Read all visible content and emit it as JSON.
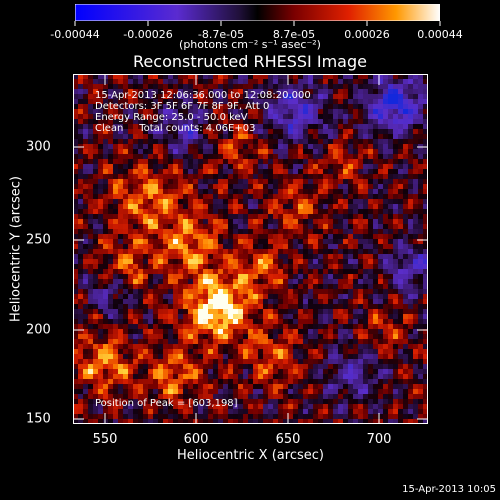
{
  "colorbar": {
    "ticks": [
      "-0.00044",
      "-0.00026",
      "-8.7e-05",
      "8.7e-05",
      "0.00026",
      "0.00044"
    ],
    "units": "(photons cm⁻² s⁻¹ asec⁻²)"
  },
  "title": "Reconstructed RHESSI Image",
  "info": {
    "time_range": "15-Apr-2013 12:06:36.000 to 12:08:20.000",
    "detectors": "Detectors: 3F 5F 6F 7F 8F 9F, Att 0",
    "energy_range": "Energy Range: 25.0 - 50.0 keV",
    "method": "Clean     Total counts: 4.06E+03"
  },
  "peak": "Position of Peak = [603,198]",
  "axes": {
    "xlabel": "Heliocentric X (arcsec)",
    "ylabel": "Heliocentric Y (arcsec)",
    "xticks": [
      "550",
      "600",
      "650",
      "700"
    ],
    "yticks": [
      "300",
      "250",
      "200",
      "150"
    ]
  },
  "footer": "15-Apr-2013 10:05",
  "colors": {
    "background": "#000000",
    "text": "#ffffff"
  },
  "chart_data": {
    "type": "heatmap",
    "title": "Reconstructed RHESSI Image",
    "xlabel": "Heliocentric X (arcsec)",
    "ylabel": "Heliocentric Y (arcsec)",
    "xlim": [
      532,
      727
    ],
    "ylim": [
      148,
      340
    ],
    "colorbar_range": [
      -0.00044,
      0.00044
    ],
    "peak_position": [
      603,
      198
    ]
  }
}
